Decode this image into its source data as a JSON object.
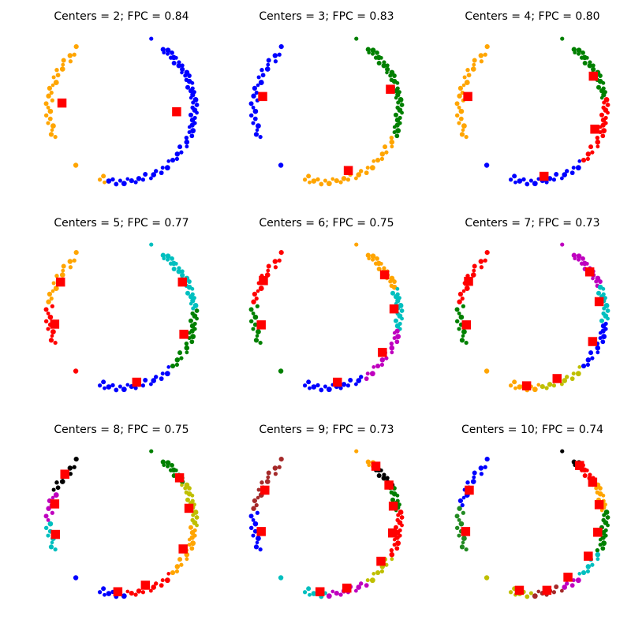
{
  "figure": {
    "background": "#ffffff",
    "title_color": "#000000"
  },
  "palette": {
    "b": "#0000ff",
    "orange": "#ffa500",
    "g": "#008000",
    "r": "#ff0000",
    "c": "#00bfbf",
    "m": "#bf00bf",
    "y": "#bfbf00",
    "k": "#000000",
    "brown": "#a52a2a",
    "forestgreen": "#228b22",
    "center_marker": "#ff0000"
  },
  "chart_data": {
    "type": "scatter",
    "description": "3x3 grid of fuzzy c-means clustering results on a noisy ring dataset; dots colored by cluster, red squares are cluster centers; axes hidden",
    "grid": "off",
    "axes": "hidden",
    "marker": {
      "point": "dot",
      "center": "red-square"
    },
    "points_polar": [
      [
        67,
        1.05
      ],
      [
        55,
        1.0
      ],
      [
        53,
        0.97
      ],
      [
        51.5,
        1.03
      ],
      [
        50,
        0.99
      ],
      [
        48,
        1.04
      ],
      [
        46,
        0.98
      ],
      [
        44.5,
        1.01
      ],
      [
        43,
        1.03
      ],
      [
        41,
        0.96
      ],
      [
        39,
        1.02
      ],
      [
        37,
        0.99
      ],
      [
        35.5,
        1.03
      ],
      [
        33,
        1.0
      ],
      [
        31,
        0.97
      ],
      [
        29,
        1.03
      ],
      [
        27.5,
        0.99
      ],
      [
        26,
        1.04
      ],
      [
        24,
        0.98
      ],
      [
        22,
        1.01
      ],
      [
        20,
        1.04
      ],
      [
        18,
        0.96
      ],
      [
        16,
        1.02
      ],
      [
        14.5,
        0.99
      ],
      [
        13,
        1.03
      ],
      [
        11,
        1.0
      ],
      [
        9,
        0.97
      ],
      [
        7,
        1.03
      ],
      [
        5,
        0.99
      ],
      [
        3,
        1.04
      ],
      [
        1,
        0.98
      ],
      [
        -1,
        1.01
      ],
      [
        -3,
        1.04
      ],
      [
        -5,
        0.96
      ],
      [
        -7,
        1.02
      ],
      [
        -9,
        0.99
      ],
      [
        -11,
        1.03
      ],
      [
        -13,
        1.0
      ],
      [
        -15,
        0.97
      ],
      [
        -17,
        1.03
      ],
      [
        -19,
        0.99
      ],
      [
        -21,
        1.04
      ],
      [
        -24,
        0.98
      ],
      [
        -27,
        1.01
      ],
      [
        -30,
        1.04
      ],
      [
        -33,
        0.96
      ],
      [
        -36,
        1.02
      ],
      [
        -39,
        0.99
      ],
      [
        -42,
        1.03
      ],
      [
        -45,
        1.0
      ],
      [
        -48,
        0.97
      ],
      [
        -52,
        1.03
      ],
      [
        -55,
        0.99
      ],
      [
        -58,
        1.04
      ],
      [
        -61,
        0.98
      ],
      [
        -64,
        1.01
      ],
      [
        -67,
        1.04
      ],
      [
        -70,
        0.96
      ],
      [
        -73,
        1.02
      ],
      [
        -76,
        0.99
      ],
      [
        -79,
        1.03
      ],
      [
        -82,
        1.0
      ],
      [
        -85,
        0.97
      ],
      [
        -88,
        1.03
      ],
      [
        -91,
        0.99
      ],
      [
        -94,
        1.04
      ],
      [
        -97,
        0.98
      ],
      [
        -100,
        1.01
      ],
      [
        -103,
        1.04
      ],
      [
        -105,
        0.96
      ],
      [
        -107,
        1.02
      ],
      [
        -129,
        1.0
      ],
      [
        203,
        0.99
      ],
      [
        200,
        1.03
      ],
      [
        197,
        1.0
      ],
      [
        194,
        0.97
      ],
      [
        191,
        1.03
      ],
      [
        188,
        0.99
      ],
      [
        185,
        1.04
      ],
      [
        182,
        0.98
      ],
      [
        179,
        1.01
      ],
      [
        176,
        1.04
      ],
      [
        173,
        0.96
      ],
      [
        170,
        1.02
      ],
      [
        167,
        0.99
      ],
      [
        164,
        1.03
      ],
      [
        161,
        1.0
      ],
      [
        158,
        0.97
      ],
      [
        155,
        1.03
      ],
      [
        152,
        0.99
      ],
      [
        149,
        1.04
      ],
      [
        146,
        0.98
      ],
      [
        143,
        1.01
      ],
      [
        140,
        1.04
      ],
      [
        137,
        0.96
      ],
      [
        134,
        1.02
      ],
      [
        131,
        0.99
      ],
      [
        126,
        1.06
      ]
    ],
    "subplots": [
      {
        "title": "Centers = 2; FPC = 0.84",
        "n_centers": 2,
        "fpc": 0.84,
        "segments": [
          {
            "from": 0,
            "to": 67,
            "color": "b"
          },
          {
            "from": 68,
            "to": 97,
            "color": "orange"
          }
        ],
        "centers": [
          [
            -0.82,
            0.08
          ],
          [
            0.76,
            -0.04
          ]
        ]
      },
      {
        "title": "Centers = 3; FPC = 0.83",
        "n_centers": 3,
        "fpc": 0.83,
        "segments": [
          {
            "from": 0,
            "to": 41,
            "color": "g"
          },
          {
            "from": 42,
            "to": 70,
            "color": "orange"
          },
          {
            "from": 71,
            "to": 97,
            "color": "b"
          }
        ],
        "centers": [
          [
            -0.88,
            0.17
          ],
          [
            0.88,
            0.27
          ],
          [
            0.3,
            -0.85
          ]
        ]
      },
      {
        "title": "Centers = 4; FPC = 0.80",
        "n_centers": 4,
        "fpc": 0.8,
        "segments": [
          {
            "from": 0,
            "to": 26,
            "color": "g"
          },
          {
            "from": 27,
            "to": 49,
            "color": "r"
          },
          {
            "from": 50,
            "to": 71,
            "color": "b"
          },
          {
            "from": 72,
            "to": 97,
            "color": "orange"
          }
        ],
        "centers": [
          [
            -0.89,
            0.17
          ],
          [
            0.84,
            0.45
          ],
          [
            0.86,
            -0.28
          ],
          [
            0.16,
            -0.93
          ]
        ]
      },
      {
        "title": "Centers = 5; FPC = 0.77",
        "n_centers": 5,
        "fpc": 0.77,
        "segments": [
          {
            "from": 0,
            "to": 28,
            "color": "c"
          },
          {
            "from": 29,
            "to": 49,
            "color": "g"
          },
          {
            "from": 50,
            "to": 70,
            "color": "b"
          },
          {
            "from": 71,
            "to": 82,
            "color": "r"
          },
          {
            "from": 83,
            "to": 97,
            "color": "orange"
          }
        ],
        "centers": [
          [
            -0.84,
            0.45
          ],
          [
            -0.92,
            -0.13
          ],
          [
            0.84,
            0.45
          ],
          [
            0.86,
            -0.27
          ],
          [
            0.21,
            -0.93
          ]
        ]
      },
      {
        "title": "Centers = 6; FPC = 0.75",
        "n_centers": 6,
        "fpc": 0.75,
        "segments": [
          {
            "from": 0,
            "to": 19,
            "color": "orange"
          },
          {
            "from": 20,
            "to": 36,
            "color": "c"
          },
          {
            "from": 37,
            "to": 53,
            "color": "m"
          },
          {
            "from": 54,
            "to": 70,
            "color": "b"
          },
          {
            "from": 71,
            "to": 82,
            "color": "g"
          },
          {
            "from": 83,
            "to": 97,
            "color": "r"
          }
        ],
        "centers": [
          [
            -0.87,
            0.47
          ],
          [
            -0.9,
            -0.14
          ],
          [
            0.8,
            0.55
          ],
          [
            0.93,
            0.08
          ],
          [
            0.77,
            -0.52
          ],
          [
            0.15,
            -0.93
          ]
        ]
      },
      {
        "title": "Centers = 7; FPC = 0.73",
        "n_centers": 7,
        "fpc": 0.73,
        "segments": [
          {
            "from": 0,
            "to": 18,
            "color": "m"
          },
          {
            "from": 19,
            "to": 33,
            "color": "c"
          },
          {
            "from": 34,
            "to": 49,
            "color": "b"
          },
          {
            "from": 50,
            "to": 61,
            "color": "y"
          },
          {
            "from": 62,
            "to": 71,
            "color": "orange"
          },
          {
            "from": 72,
            "to": 82,
            "color": "g"
          },
          {
            "from": 83,
            "to": 97,
            "color": "r"
          }
        ],
        "centers": [
          [
            -0.88,
            0.46
          ],
          [
            -0.91,
            -0.14
          ],
          [
            0.79,
            0.59
          ],
          [
            0.92,
            0.18
          ],
          [
            0.83,
            -0.37
          ],
          [
            0.34,
            -0.88
          ],
          [
            -0.08,
            -0.98
          ]
        ]
      },
      {
        "title": "Centers = 8; FPC = 0.75",
        "n_centers": 8,
        "fpc": 0.75,
        "segments": [
          {
            "from": 0,
            "to": 13,
            "color": "g"
          },
          {
            "from": 14,
            "to": 32,
            "color": "y"
          },
          {
            "from": 33,
            "to": 49,
            "color": "orange"
          },
          {
            "from": 50,
            "to": 62,
            "color": "r"
          },
          {
            "from": 63,
            "to": 71,
            "color": "b"
          },
          {
            "from": 72,
            "to": 79,
            "color": "c"
          },
          {
            "from": 80,
            "to": 87,
            "color": "m"
          },
          {
            "from": 88,
            "to": 97,
            "color": "k"
          }
        ],
        "centers": [
          [
            -0.78,
            0.65
          ],
          [
            -0.92,
            0.24
          ],
          [
            -0.91,
            -0.18
          ],
          [
            -0.05,
            -0.97
          ],
          [
            0.33,
            -0.88
          ],
          [
            0.85,
            -0.38
          ],
          [
            0.93,
            0.18
          ],
          [
            0.8,
            0.6
          ]
        ]
      },
      {
        "title": "Centers = 9; FPC = 0.73",
        "n_centers": 9,
        "fpc": 0.73,
        "segments": [
          {
            "from": 0,
            "to": 5,
            "color": "orange"
          },
          {
            "from": 6,
            "to": 15,
            "color": "k"
          },
          {
            "from": 16,
            "to": 26,
            "color": "g"
          },
          {
            "from": 27,
            "to": 43,
            "color": "r"
          },
          {
            "from": 44,
            "to": 52,
            "color": "y"
          },
          {
            "from": 53,
            "to": 63,
            "color": "m"
          },
          {
            "from": 64,
            "to": 71,
            "color": "c"
          },
          {
            "from": 72,
            "to": 82,
            "color": "b"
          },
          {
            "from": 83,
            "to": 97,
            "color": "brown"
          }
        ],
        "centers": [
          [
            -0.85,
            0.43
          ],
          [
            -0.9,
            -0.14
          ],
          [
            -0.09,
            -0.97
          ],
          [
            0.28,
            -0.92
          ],
          [
            0.75,
            -0.55
          ],
          [
            0.91,
            -0.16
          ],
          [
            0.92,
            0.21
          ],
          [
            0.86,
            0.5
          ],
          [
            0.68,
            0.76
          ]
        ]
      },
      {
        "title": "Centers = 10; FPC = 0.74",
        "n_centers": 10,
        "fpc": 0.74,
        "segments": [
          {
            "from": 0,
            "to": 4,
            "color": "k"
          },
          {
            "from": 5,
            "to": 12,
            "color": "r"
          },
          {
            "from": 13,
            "to": 26,
            "color": "orange"
          },
          {
            "from": 27,
            "to": 42,
            "color": "g"
          },
          {
            "from": 43,
            "to": 50,
            "color": "c"
          },
          {
            "from": 51,
            "to": 55,
            "color": "m"
          },
          {
            "from": 56,
            "to": 63,
            "color": "brown"
          },
          {
            "from": 64,
            "to": 71,
            "color": "y"
          },
          {
            "from": 72,
            "to": 83,
            "color": "forestgreen"
          },
          {
            "from": 84,
            "to": 97,
            "color": "b"
          }
        ],
        "centers": [
          [
            -0.87,
            0.43
          ],
          [
            -0.92,
            -0.14
          ],
          [
            -0.18,
            -0.95
          ],
          [
            0.2,
            -0.95
          ],
          [
            0.49,
            -0.77
          ],
          [
            0.77,
            -0.48
          ],
          [
            0.9,
            -0.15
          ],
          [
            0.92,
            0.23
          ],
          [
            0.83,
            0.54
          ],
          [
            0.65,
            0.77
          ]
        ]
      }
    ]
  }
}
